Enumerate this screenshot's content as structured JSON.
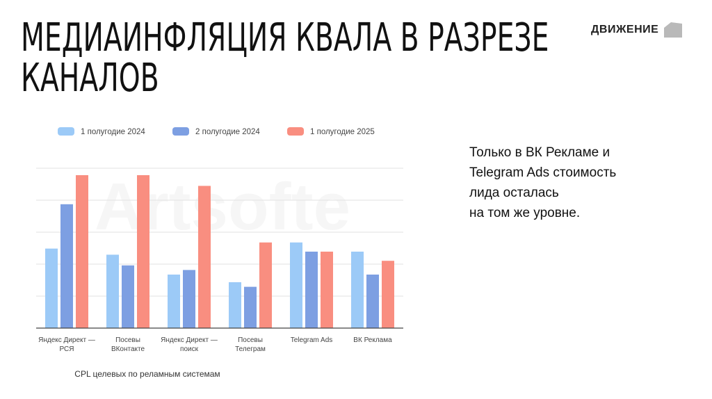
{
  "title_lines": [
    "МЕДИАИНФЛЯЦИЯ КВАЛА В РАЗРЕЗЕ",
    "КАНАЛОВ"
  ],
  "brand": {
    "name": "ДВИЖЕНИЕ",
    "logo_icon": "house-shape-icon"
  },
  "watermark": "Artsofte",
  "note_lines": [
    "Только в ВК Рекламе и",
    "Telegram Ads стоимость",
    "лида осталась",
    "на том же уровне."
  ],
  "colors": {
    "series1": "#9ccaf7",
    "series2": "#7d9fe2",
    "series3": "#f98e80",
    "grid": "#e2e2e2",
    "axis": "#444444"
  },
  "chart_data": {
    "type": "bar",
    "xlabel": "CPL целевых по реламным системам",
    "ylabel": "",
    "ylim": [
      0,
      100
    ],
    "grid": true,
    "legend_position": "top",
    "categories": [
      [
        "Яндекс Директ —",
        "РСЯ"
      ],
      [
        "Посевы",
        "ВКонтакте"
      ],
      [
        "Яндекс Директ —",
        "поиск"
      ],
      [
        "Посевы",
        "Телеграм"
      ],
      [
        "Telegram Ads"
      ],
      [
        "ВК Реклама"
      ]
    ],
    "series": [
      {
        "name": "1 полугодие 2024",
        "values": [
          52,
          48,
          35,
          30,
          56,
          50
        ]
      },
      {
        "name": "2 полугодие 2024",
        "values": [
          81,
          41,
          38,
          27,
          50,
          35
        ]
      },
      {
        "name": "1 полугодие 2025",
        "values": [
          100,
          100,
          93,
          56,
          50,
          44
        ]
      }
    ]
  }
}
